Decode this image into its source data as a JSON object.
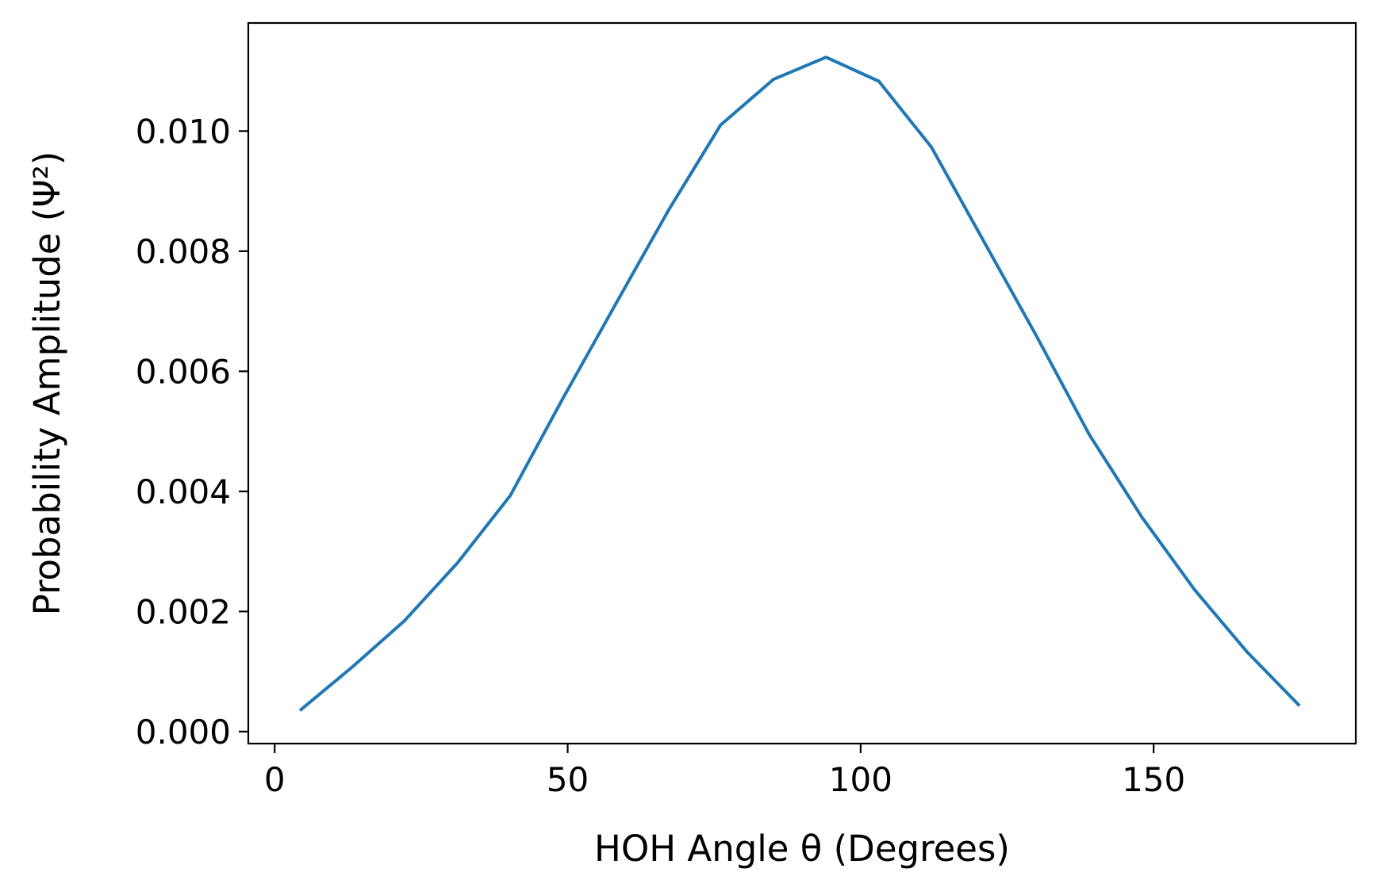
{
  "chart_data": {
    "type": "line",
    "title": "",
    "xlabel": "HOH Angle θ (Degrees)",
    "ylabel": "Probability Amplitude (Ψ²)",
    "xlim": [
      -4.5,
      184.5
    ],
    "ylim": [
      -0.0002,
      0.0118
    ],
    "xticks": [
      0,
      50,
      100,
      150
    ],
    "xtick_labels": [
      "0",
      "50",
      "100",
      "150"
    ],
    "yticks": [
      0.0,
      0.002,
      0.004,
      0.006,
      0.008,
      0.01
    ],
    "ytick_labels": [
      "0.000",
      "0.002",
      "0.004",
      "0.006",
      "0.008",
      "0.010"
    ],
    "grid": false,
    "legend": "none",
    "series": [
      {
        "color": "#1f77b4",
        "x": [
          4.3,
          13.3,
          22.2,
          31.2,
          40.2,
          49.2,
          58.2,
          67.2,
          76.1,
          85.1,
          94.1,
          103.1,
          112.1,
          121.1,
          130.0,
          139.0,
          148.0,
          157.0,
          166.0,
          174.9
        ],
        "y": [
          0.00035,
          0.00108,
          0.00185,
          0.00281,
          0.00393,
          0.00555,
          0.00712,
          0.00868,
          0.0101,
          0.01086,
          0.01123,
          0.01083,
          0.00973,
          0.00815,
          0.00659,
          0.00495,
          0.00357,
          0.00236,
          0.00132,
          0.00043
        ]
      }
    ]
  }
}
